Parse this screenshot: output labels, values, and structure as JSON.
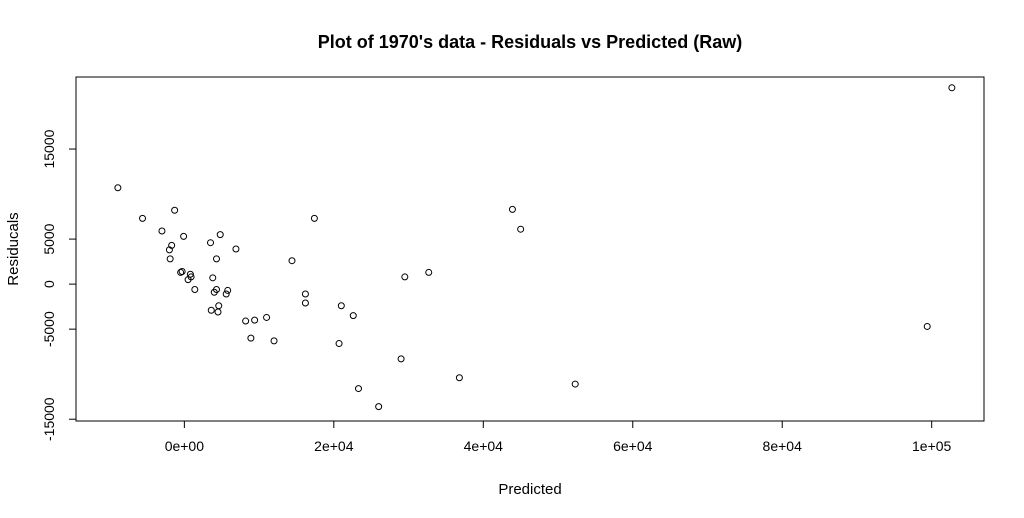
{
  "chart_data": {
    "type": "scatter",
    "title": "Plot of 1970's data - Residuals vs Predicted (Raw)",
    "xlabel": "Predicted",
    "ylabel": "Residucals",
    "xlim": [
      -14500,
      107000
    ],
    "ylim": [
      -15200,
      23000
    ],
    "x_ticks": [
      {
        "value": 0,
        "label": "0e+00"
      },
      {
        "value": 20000,
        "label": "2e+04"
      },
      {
        "value": 40000,
        "label": "4e+04"
      },
      {
        "value": 60000,
        "label": "6e+04"
      },
      {
        "value": 80000,
        "label": "8e+04"
      },
      {
        "value": 100000,
        "label": "1e+05"
      }
    ],
    "y_ticks": [
      {
        "value": -15000,
        "label": "-15000"
      },
      {
        "value": -5000,
        "label": "-5000"
      },
      {
        "value": 0,
        "label": "0"
      },
      {
        "value": 5000,
        "label": "5000"
      },
      {
        "value": 15000,
        "label": "15000"
      }
    ],
    "grid": false,
    "points": [
      {
        "x": -8900,
        "y": 10700
      },
      {
        "x": -5600,
        "y": 7300
      },
      {
        "x": -3000,
        "y": 5900
      },
      {
        "x": -1300,
        "y": 8200
      },
      {
        "x": -1700,
        "y": 4300
      },
      {
        "x": -2000,
        "y": 3800
      },
      {
        "x": -1900,
        "y": 2800
      },
      {
        "x": -100,
        "y": 5300
      },
      {
        "x": -300,
        "y": 1400
      },
      {
        "x": -500,
        "y": 1300
      },
      {
        "x": 800,
        "y": 1100
      },
      {
        "x": 900,
        "y": 800
      },
      {
        "x": 500,
        "y": 500
      },
      {
        "x": 1400,
        "y": -600
      },
      {
        "x": 3500,
        "y": 4600
      },
      {
        "x": 4800,
        "y": 5500
      },
      {
        "x": 4300,
        "y": 2800
      },
      {
        "x": 6900,
        "y": 3900
      },
      {
        "x": 3800,
        "y": 700
      },
      {
        "x": 4300,
        "y": -600
      },
      {
        "x": 4000,
        "y": -900
      },
      {
        "x": 5800,
        "y": -700
      },
      {
        "x": 5600,
        "y": -1100
      },
      {
        "x": 4600,
        "y": -2400
      },
      {
        "x": 3600,
        "y": -2900
      },
      {
        "x": 4500,
        "y": -3100
      },
      {
        "x": 8200,
        "y": -4100
      },
      {
        "x": 9400,
        "y": -4000
      },
      {
        "x": 11000,
        "y": -3700
      },
      {
        "x": 8900,
        "y": -6000
      },
      {
        "x": 12000,
        "y": -6300
      },
      {
        "x": 14400,
        "y": 2600
      },
      {
        "x": 17400,
        "y": 7300
      },
      {
        "x": 16200,
        "y": -1100
      },
      {
        "x": 16200,
        "y": -2100
      },
      {
        "x": 21000,
        "y": -2400
      },
      {
        "x": 22600,
        "y": -3500
      },
      {
        "x": 20700,
        "y": -6600
      },
      {
        "x": 23300,
        "y": -11600
      },
      {
        "x": 26000,
        "y": -13600
      },
      {
        "x": 29000,
        "y": -8300
      },
      {
        "x": 29500,
        "y": 800
      },
      {
        "x": 32700,
        "y": 1300
      },
      {
        "x": 36800,
        "y": -10400
      },
      {
        "x": 43900,
        "y": 8300
      },
      {
        "x": 45000,
        "y": 6100
      },
      {
        "x": 52300,
        "y": -11100
      },
      {
        "x": 99400,
        "y": -4700
      },
      {
        "x": 102700,
        "y": 21800
      }
    ]
  }
}
